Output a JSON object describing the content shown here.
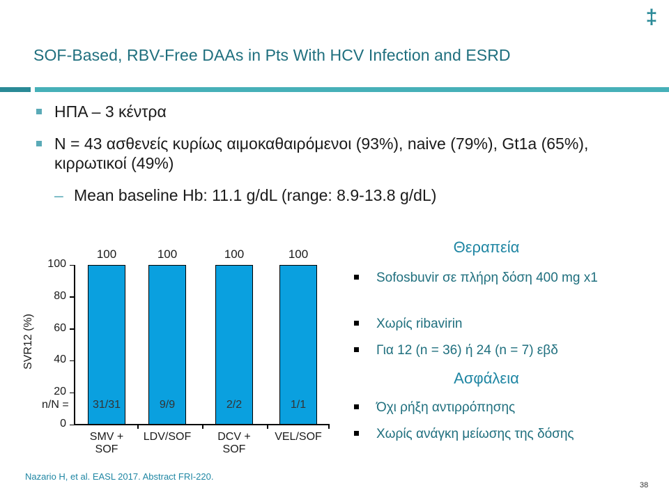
{
  "slide": {
    "logo_glyph": "‡",
    "title": "SOF-Based, RBV-Free DAAs in Pts With HCV Infection and ESRD",
    "bullets": [
      "ΗΠΑ – 3 κέντρα",
      "N = 43 ασθενείς κυρίως αιμοκαθαιρόμενοι (93%), naive (79%), Gt1a (65%), κιρρωτικοί (49%)"
    ],
    "sub_bullet": "Mean baseline Hb: 11.1 g/dL (range: 8.9-13.8 g/dL)",
    "citation": "Nazario H, et al. EASL 2017. Abstract FRI-220.",
    "page_number": "38",
    "colors": {
      "accent": "#46b0b8",
      "bar": "#0aa0df",
      "title": "#1f6f7e"
    }
  },
  "chart_data": {
    "type": "bar",
    "ylabel": "SVR12 (%)",
    "ylim": [
      0,
      100
    ],
    "yticks": [
      0,
      20,
      40,
      60,
      80,
      100
    ],
    "categories": [
      "SMV + SOF",
      "LDV/SOF",
      "DCV + SOF",
      "VEL/SOF"
    ],
    "values": [
      100,
      100,
      100,
      100
    ],
    "nN_label": "n/N =",
    "nN": [
      "31/31",
      "9/9",
      "2/2",
      "1/1"
    ]
  },
  "right_panel": {
    "therapy_heading": "Θεραπεία",
    "therapy_items": [
      "Sofosbuvir σε πλήρη δόση 400 mg x1",
      "Χωρίς ribavirin",
      "Για 12 (n = 36) ή 24 (n = 7) εβδ"
    ],
    "safety_heading": "Ασφάλεια",
    "safety_items": [
      "Όχι ρήξη αντιρρόπησης",
      "Χωρίς ανάγκη μείωσης της δόσης"
    ]
  }
}
